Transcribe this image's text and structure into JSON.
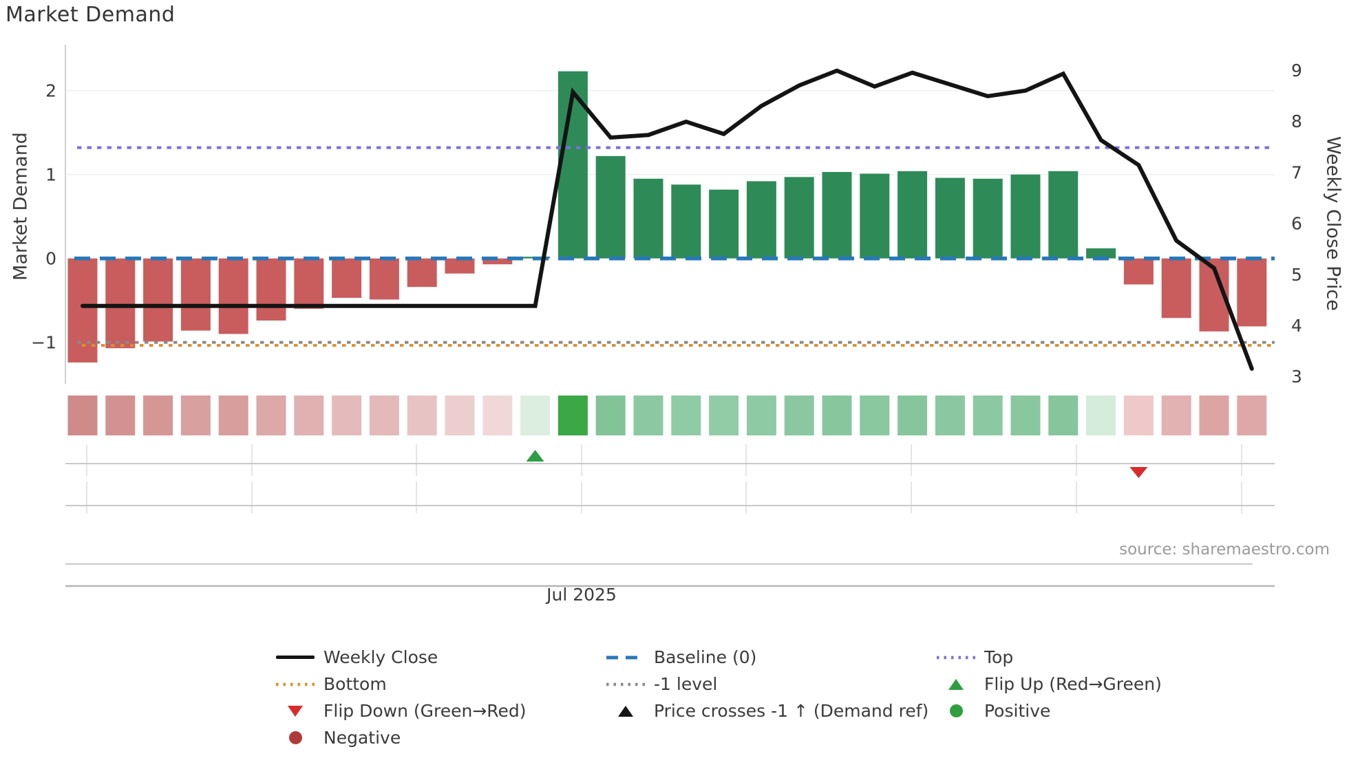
{
  "title": "Market Demand",
  "y_left_label": "Market Demand",
  "y_right_label": "Weekly Close Price",
  "x_tick_label": "Jul 2025",
  "source_text": "source: sharemaestro.com",
  "colors": {
    "bar_negative": "#C95D5D",
    "bar_positive": "#2E8B57",
    "price_line": "#141414",
    "baseline": "#2878B8",
    "top_line": "#7B6FE0",
    "bottom_line": "#DD8F2F",
    "minus1_line": "#8A8A8A",
    "flip_up": "#2E9E44",
    "flip_down": "#D92B2B",
    "positive_dot": "#2E9E3E",
    "negative_dot": "#B03A3A",
    "grid": "#EFEFF2",
    "panel_line": "#C8C8CB",
    "month_line": "#DCDCDF",
    "spine": "#B5B5B8",
    "axis_spine": "#D0D0D3",
    "tick_text": "#3B3B3B"
  },
  "chart_data": {
    "type": "bar+line",
    "n_points": 32,
    "x_label_visible": "Jul 2025",
    "series": [
      {
        "name": "Market Demand",
        "type": "bar",
        "axis": "left",
        "values": [
          -1.24,
          -1.07,
          -0.99,
          -0.86,
          -0.9,
          -0.74,
          -0.6,
          -0.47,
          -0.49,
          -0.34,
          -0.18,
          -0.07,
          0.02,
          2.23,
          1.22,
          0.95,
          0.88,
          0.82,
          0.92,
          0.97,
          1.03,
          1.01,
          1.04,
          0.96,
          0.95,
          1.0,
          1.04,
          0.12,
          -0.31,
          -0.71,
          -0.87,
          -0.81
        ]
      },
      {
        "name": "Weekly Close",
        "type": "line",
        "axis": "right",
        "values": [
          4.38,
          4.38,
          4.38,
          4.38,
          4.38,
          4.38,
          4.38,
          4.38,
          4.38,
          4.38,
          4.38,
          4.38,
          4.38,
          8.57,
          7.68,
          7.73,
          7.99,
          7.75,
          8.3,
          8.7,
          8.99,
          8.68,
          8.95,
          8.72,
          8.49,
          8.6,
          8.93,
          7.63,
          7.14,
          5.66,
          5.12,
          3.15
        ]
      }
    ],
    "left_axis": {
      "label": "Market Demand",
      "tick_values": [
        2,
        1,
        0,
        -1
      ],
      "tick_labels": [
        "2",
        "1",
        "0",
        "−1"
      ]
    },
    "right_axis": {
      "label": "Weekly Close Price",
      "tick_values": [
        9,
        8,
        7,
        6,
        5,
        4,
        3
      ],
      "tick_labels": [
        "9",
        "8",
        "7",
        "6",
        "5",
        "4",
        "3"
      ]
    },
    "reference_lines": {
      "baseline": 0,
      "top": 1.32,
      "bottom": -1.02,
      "minus1": -1.0
    },
    "grid_values_left": [
      2,
      1
    ],
    "heatmap_strip": [
      "#CF8A8A",
      "#D39292",
      "#D59696",
      "#D9A0A0",
      "#D89D9D",
      "#DCA8A8",
      "#E0B1B1",
      "#E4BABA",
      "#E3B9B9",
      "#E8C3C3",
      "#ECCECE",
      "#F0D8D8",
      "#DCEEE0",
      "#39A845",
      "#82C398",
      "#8CC9A2",
      "#8FCBA5",
      "#91CCA7",
      "#8ECAA4",
      "#8BC8A1",
      "#88C79E",
      "#8AC8A0",
      "#87C69D",
      "#8BC8A1",
      "#8CC9A2",
      "#89C79F",
      "#87C69D",
      "#D5ECDB",
      "#EFC9C9",
      "#E2B1B1",
      "#DDA4A4",
      "#DFA8A8"
    ],
    "markers": {
      "flip_up_index": 12,
      "flip_down_index": 28
    }
  },
  "legend": {
    "columns": [
      {
        "items": [
          {
            "swatch": "line",
            "color": "#141414",
            "label": "Weekly Close"
          },
          {
            "swatch": "dotted",
            "color": "#DD8F2F",
            "label": "Bottom"
          },
          {
            "swatch": "tri-down",
            "color": "#D92B2B",
            "label": "Flip Down (Green→Red)"
          },
          {
            "swatch": "dot",
            "color": "#B03A3A",
            "label": "Negative"
          }
        ]
      },
      {
        "items": [
          {
            "swatch": "dashed",
            "color": "#2878B8",
            "label": "Baseline (0)"
          },
          {
            "swatch": "dotted",
            "color": "#8A8A8A",
            "label": "-1 level"
          },
          {
            "swatch": "tri-up",
            "color": "#141414",
            "label": "Price crosses -1 ↑ (Demand ref)"
          }
        ]
      },
      {
        "items": [
          {
            "swatch": "dotted",
            "color": "#7B6FE0",
            "label": "Top"
          },
          {
            "swatch": "tri-up",
            "color": "#2E9E44",
            "label": "Flip Up (Red→Green)"
          },
          {
            "swatch": "dot",
            "color": "#2E9E3E",
            "label": "Positive"
          }
        ]
      }
    ]
  }
}
